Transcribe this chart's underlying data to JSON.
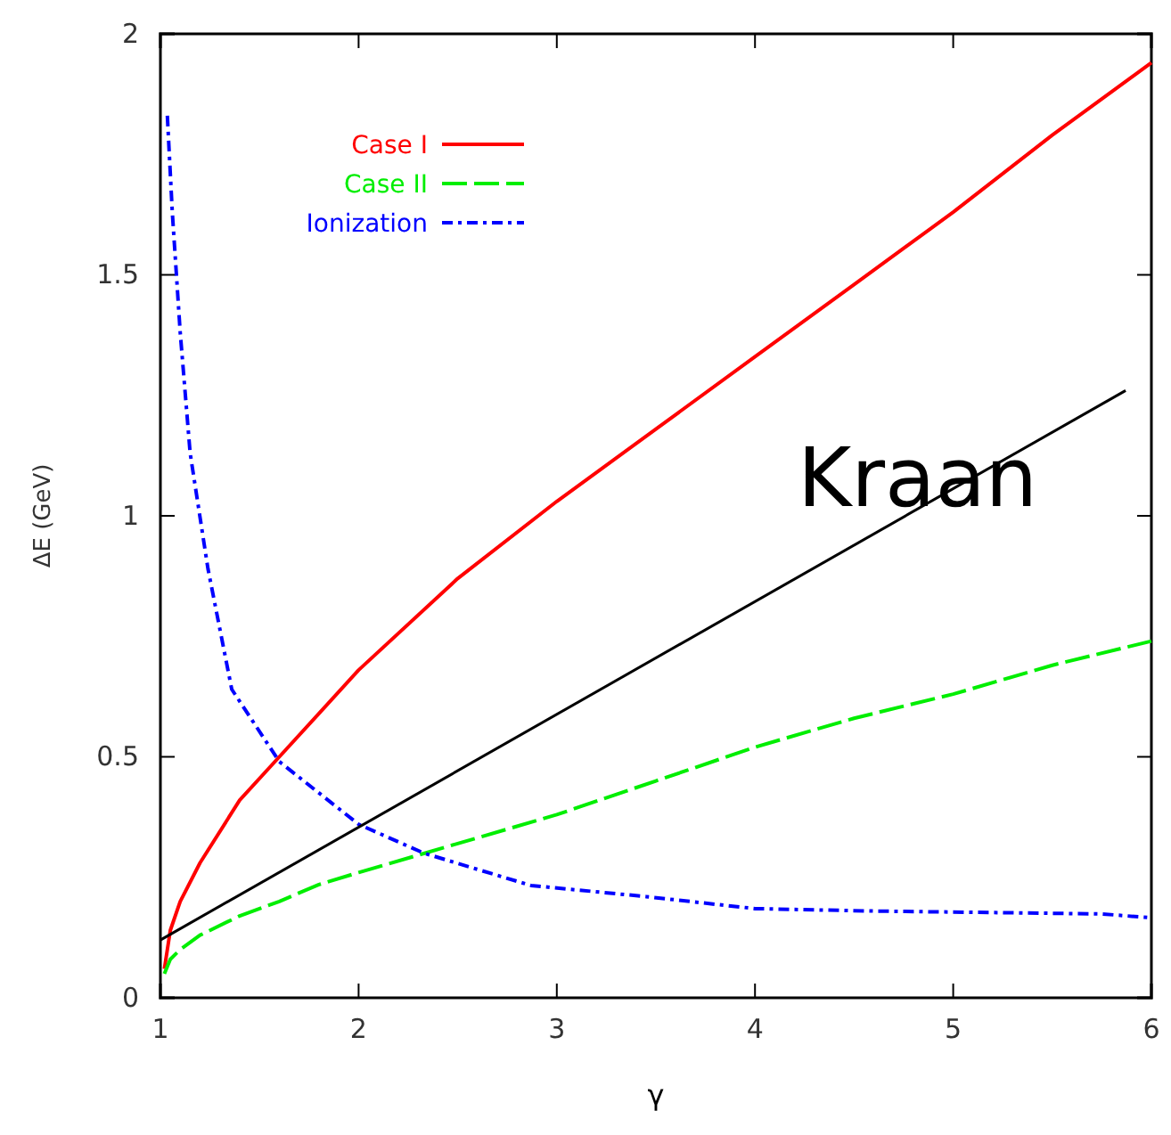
{
  "chart_data": {
    "type": "line",
    "xlabel": "γ",
    "ylabel": "ΔE  (GeV)",
    "xlim": [
      1,
      6
    ],
    "ylim": [
      0,
      2
    ],
    "xticks": [
      1,
      2,
      3,
      4,
      5,
      6
    ],
    "yticks": [
      0,
      0.5,
      1,
      1.5,
      2
    ],
    "grid": false,
    "legend": "top left",
    "series": [
      {
        "name": "Case I",
        "color": "#ff0000",
        "line_style": "solid",
        "x": [
          1.02,
          1.05,
          1.1,
          1.2,
          1.4,
          1.6,
          1.8,
          2,
          2.5,
          3,
          3.5,
          4,
          4.5,
          5,
          5.5,
          6
        ],
        "values": [
          0.06,
          0.14,
          0.2,
          0.28,
          0.41,
          0.5,
          0.59,
          0.68,
          0.87,
          1.03,
          1.18,
          1.33,
          1.48,
          1.63,
          1.79,
          1.94
        ]
      },
      {
        "name": "Case II",
        "color": "#00ee00",
        "line_style": "dashed",
        "x": [
          1.02,
          1.05,
          1.1,
          1.2,
          1.4,
          1.6,
          1.8,
          2,
          2.5,
          3,
          3.5,
          4,
          4.5,
          5,
          5.5,
          6
        ],
        "values": [
          0.05,
          0.08,
          0.1,
          0.13,
          0.17,
          0.2,
          0.235,
          0.26,
          0.32,
          0.38,
          0.45,
          0.52,
          0.58,
          0.63,
          0.69,
          0.74
        ]
      },
      {
        "name": "Ionization",
        "color": "#0000ff",
        "line_style": "dashdot",
        "x": [
          1.035,
          1.06,
          1.1,
          1.15,
          1.24,
          1.36,
          1.6,
          2,
          2.33,
          2.87,
          3.45,
          4,
          4.6,
          5.75,
          6
        ],
        "values": [
          1.83,
          1.63,
          1.38,
          1.13,
          0.89,
          0.64,
          0.49,
          0.36,
          0.3,
          0.233,
          0.21,
          0.185,
          0.18,
          0.174,
          0.166
        ]
      },
      {
        "color": "#000000",
        "line_style": "solid",
        "x": [
          1,
          5.87
        ],
        "values": [
          0.12,
          1.26
        ]
      }
    ],
    "annotations": [
      {
        "text": "Kraan",
        "x": 4.82,
        "y": 1.02
      }
    ]
  }
}
